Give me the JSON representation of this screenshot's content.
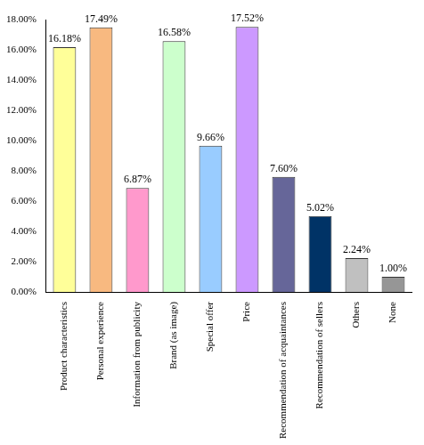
{
  "chart_data": {
    "type": "bar",
    "categories": [
      "Product characteristics",
      "Personal experience",
      "Information from publicity",
      "Brand (as image)",
      "Special offer",
      "Price",
      "Recommendation of acquaintances",
      "Recommendation of sellers",
      "Others",
      "None"
    ],
    "values": [
      16.18,
      17.49,
      6.87,
      16.58,
      9.66,
      17.52,
      7.6,
      5.02,
      2.24,
      1.0
    ],
    "value_labels": [
      "16.18%",
      "17.49%",
      "6.87%",
      "16.58%",
      "9.66%",
      "17.52%",
      "7.60%",
      "5.02%",
      "2.24%",
      "1.00%"
    ],
    "colors": [
      "#ffff99",
      "#f8b980",
      "#ff99cc",
      "#ccffcc",
      "#99ccff",
      "#cc99ff",
      "#666699",
      "#003366",
      "#c0c0c0",
      "#969696"
    ],
    "ylim": [
      0,
      18
    ],
    "yticks": [
      {
        "value": 0,
        "label": "0.00%"
      },
      {
        "value": 2,
        "label": "2.00%"
      },
      {
        "value": 4,
        "label": "4.00%"
      },
      {
        "value": 6,
        "label": "6.00%"
      },
      {
        "value": 8,
        "label": "8.00%"
      },
      {
        "value": 10,
        "label": "10.00%"
      },
      {
        "value": 12,
        "label": "12.00%"
      },
      {
        "value": 14,
        "label": "14.00%"
      },
      {
        "value": 16,
        "label": "16.00%"
      },
      {
        "value": 18,
        "label": "18.00%"
      }
    ],
    "grid": false,
    "data_labels": true
  }
}
